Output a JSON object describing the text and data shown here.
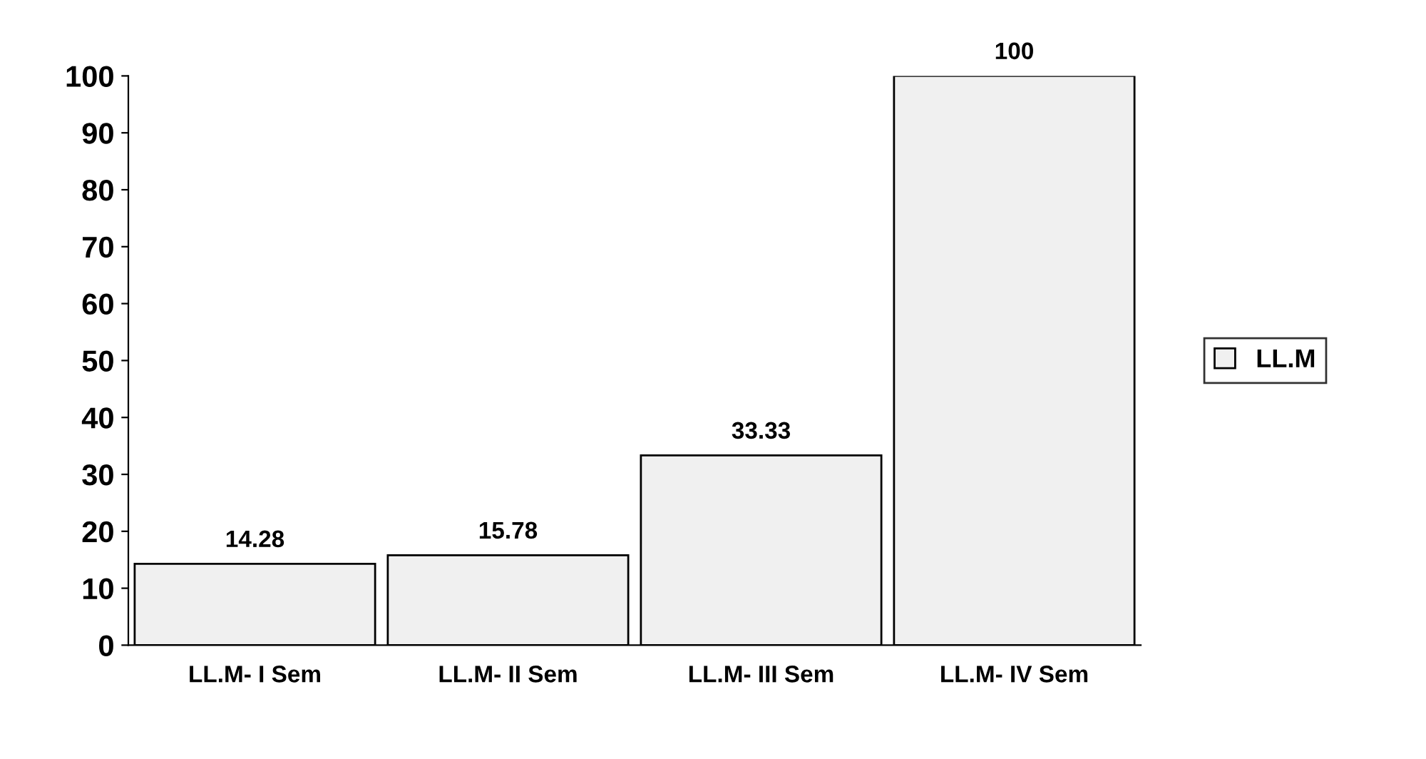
{
  "chart_data": {
    "type": "bar",
    "categories": [
      "LL.M- I Sem",
      "LL.M- II Sem",
      "LL.M- III Sem",
      "LL.M- IV Sem"
    ],
    "series": [
      {
        "name": "LL.M",
        "color": "#f0f0f0",
        "values": [
          14.28,
          15.78,
          33.33,
          100
        ]
      }
    ],
    "ylim": [
      0,
      100
    ],
    "yticks": [
      0,
      10,
      20,
      30,
      40,
      50,
      60,
      70,
      80,
      90,
      100
    ],
    "data_labels": true,
    "legend": "right",
    "grid": false
  }
}
